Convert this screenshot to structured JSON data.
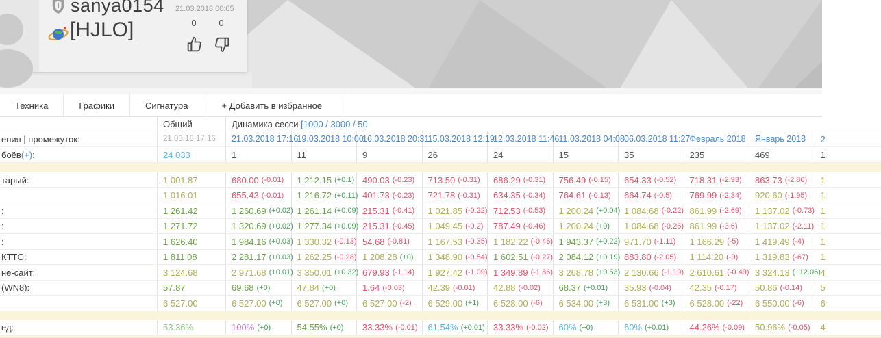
{
  "profile": {
    "name": "sanya0154",
    "clan": "[HJLO]",
    "date": "21.03.2018 00:05",
    "likes": "0",
    "dislikes": "0"
  },
  "tabs": [
    {
      "label": "Техника"
    },
    {
      "label": "Графики"
    },
    {
      "label": "Сигнатура"
    },
    {
      "label": "+ Добавить в избранное"
    }
  ],
  "table": {
    "header": {
      "overall": "Общий",
      "dynamics": "Динамика сесси",
      "dynamics_links": "[1000 / 3000 / 50"
    },
    "date_row": {
      "label": "ения | промежуток:",
      "overall": "21.03.18 17:16",
      "sessions": [
        "21.03.2018 17:16",
        "19.03.2018 10:00",
        "16.03.2018 20:31",
        "15.03.2018 12:19",
        "12.03.2018 11:46",
        "11.03.2018 04:08",
        "06.03.2018 11:27",
        "Февраль 2018",
        "Январь 2018"
      ],
      "partial": "2"
    },
    "battles_row": {
      "label_pre": "боёв ",
      "label_link": "(+)",
      "label_post": ":",
      "overall": "24 033",
      "sessions": [
        "1",
        "11",
        "9",
        "26",
        "24",
        "15",
        "35",
        "235",
        "469"
      ],
      "partial": "1"
    },
    "stat_rows": [
      {
        "label": "тарый:",
        "overall": [
          "1 001.87",
          "olive"
        ],
        "partial": [
          "1",
          "olive"
        ],
        "cells": [
          [
            "680.00",
            "red",
            "(-0.01)",
            "red"
          ],
          [
            "1 212.15",
            "green",
            "(+0.1)",
            "dgreen"
          ],
          [
            "490.03",
            "red",
            "(-0.23)",
            "red"
          ],
          [
            "713.50",
            "red",
            "(-0.31)",
            "red"
          ],
          [
            "686.29",
            "red",
            "(-0.31)",
            "red"
          ],
          [
            "756.49",
            "red",
            "(-0.15)",
            "red"
          ],
          [
            "654.33",
            "red",
            "(-0.52)",
            "red"
          ],
          [
            "718.31",
            "red",
            "(-2.93)",
            "red"
          ],
          [
            "863.73",
            "red",
            "(-2.86)",
            "red"
          ]
        ]
      },
      {
        "label": "",
        "overall": [
          "1 016.01",
          "olive"
        ],
        "partial": [
          "1",
          "olive"
        ],
        "cells": [
          [
            "655.43",
            "red",
            "(-0.01)",
            "red"
          ],
          [
            "1 216.72",
            "green",
            "(+0.11)",
            "dgreen"
          ],
          [
            "401.73",
            "red",
            "(-0.23)",
            "red"
          ],
          [
            "721.78",
            "red",
            "(-0.31)",
            "red"
          ],
          [
            "634.35",
            "red",
            "(-0.34)",
            "red"
          ],
          [
            "764.61",
            "red",
            "(-0.13)",
            "red"
          ],
          [
            "664.74",
            "red",
            "(-0.5)",
            "red"
          ],
          [
            "769.99",
            "red",
            "(-2.34)",
            "red"
          ],
          [
            "920.60",
            "olive",
            "(-1.95)",
            "red"
          ]
        ]
      },
      {
        "label": ":",
        "overall": [
          "1 261.42",
          "green"
        ],
        "partial": [
          "1",
          "olive"
        ],
        "cells": [
          [
            "1 260.69",
            "green",
            "(+0.02)",
            "dgreen"
          ],
          [
            "1 261.14",
            "green",
            "(+0.09)",
            "dgreen"
          ],
          [
            "215.31",
            "red",
            "(-0.41)",
            "red"
          ],
          [
            "1 021.85",
            "olive",
            "(-0.22)",
            "red"
          ],
          [
            "712.53",
            "red",
            "(-0.53)",
            "red"
          ],
          [
            "1 200.24",
            "olive",
            "(+0.04)",
            "dgreen"
          ],
          [
            "1 084.68",
            "olive",
            "(-0.22)",
            "red"
          ],
          [
            "861.99",
            "olive",
            "(-2.69)",
            "red"
          ],
          [
            "1 137.02",
            "olive",
            "(-0.73)",
            "red"
          ]
        ]
      },
      {
        "label": ":",
        "overall": [
          "1 271.72",
          "green"
        ],
        "partial": [
          "1",
          "olive"
        ],
        "cells": [
          [
            "1 320.69",
            "green",
            "(+0.02)",
            "dgreen"
          ],
          [
            "1 277.34",
            "green",
            "(+0.09)",
            "dgreen"
          ],
          [
            "215.31",
            "red",
            "(-0.45)",
            "red"
          ],
          [
            "1 049.45",
            "olive",
            "(-0.2)",
            "red"
          ],
          [
            "787.49",
            "red",
            "(-0.46)",
            "red"
          ],
          [
            "1 200.24",
            "olive",
            "(+0)",
            "dgreen"
          ],
          [
            "1 084.68",
            "olive",
            "(-0.26)",
            "red"
          ],
          [
            "861.99",
            "olive",
            "(-3.6)",
            "red"
          ],
          [
            "1 137.02",
            "olive",
            "(-2.11)",
            "red"
          ]
        ]
      },
      {
        "label": ":",
        "overall": [
          "1 626.40",
          "green"
        ],
        "partial": [
          "1",
          "olive"
        ],
        "cells": [
          [
            "1 984.16",
            "green",
            "(+0.03)",
            "dgreen"
          ],
          [
            "1 330.32",
            "olive",
            "(-0.13)",
            "red"
          ],
          [
            "54.68",
            "red",
            "(-0.81)",
            "red"
          ],
          [
            "1 167.53",
            "olive",
            "(-0.35)",
            "red"
          ],
          [
            "1 182.22",
            "olive",
            "(-0.46)",
            "red"
          ],
          [
            "1 943.37",
            "green",
            "(+0.22)",
            "dgreen"
          ],
          [
            "971.70",
            "olive",
            "(-1.11)",
            "red"
          ],
          [
            "1 166.29",
            "olive",
            "(-5)",
            "red"
          ],
          [
            "1 419.49",
            "olive",
            "(-4)",
            "red"
          ]
        ]
      },
      {
        "label": "КТТС:",
        "overall": [
          "1 811.08",
          "green"
        ],
        "partial": [
          "1",
          "olive"
        ],
        "cells": [
          [
            "2 281.17",
            "green",
            "(+0.03)",
            "dgreen"
          ],
          [
            "1 262.25",
            "olive",
            "(-0.28)",
            "red"
          ],
          [
            "1 208.28",
            "olive",
            "(+0)",
            "dgreen"
          ],
          [
            "1 348.90",
            "olive",
            "(-0.54)",
            "red"
          ],
          [
            "1 602.51",
            "green",
            "(-0.27)",
            "red"
          ],
          [
            "2 084.12",
            "green",
            "(+0.19)",
            "dgreen"
          ],
          [
            "883.80",
            "red",
            "(-2.05)",
            "red"
          ],
          [
            "1 114.20",
            "olive",
            "(-9)",
            "red"
          ],
          [
            "1 319.83",
            "olive",
            "(-67)",
            "red"
          ]
        ]
      },
      {
        "label": "не-сайт:",
        "overall": [
          "3 124.68",
          "olive"
        ],
        "partial": [
          "4",
          "olive"
        ],
        "cells": [
          [
            "2 971.68",
            "olive",
            "(+0.01)",
            "dgreen"
          ],
          [
            "3 350.01",
            "olive",
            "(+0.32)",
            "dgreen"
          ],
          [
            "679.93",
            "red",
            "(-1.14)",
            "red"
          ],
          [
            "1 927.42",
            "olive",
            "(-1.09)",
            "red"
          ],
          [
            "1 349.89",
            "red",
            "(-1.86)",
            "red"
          ],
          [
            "3 268.78",
            "olive",
            "(+0.53)",
            "dgreen"
          ],
          [
            "2 130.66",
            "olive",
            "(-1.19)",
            "red"
          ],
          [
            "2 610.61",
            "olive",
            "(-0.49)",
            "red"
          ],
          [
            "3 324.13",
            "olive",
            "(+12.06)",
            "dgreen"
          ]
        ]
      },
      {
        "label": " (WN8):",
        "overall": [
          "57.87",
          "green"
        ],
        "partial": [
          "5",
          "olive"
        ],
        "cells": [
          [
            "69.68",
            "green",
            "(+0)",
            "dgreen"
          ],
          [
            "47.84",
            "olive",
            "(+0)",
            "dgreen"
          ],
          [
            "1.64",
            "red",
            "(-0.03)",
            "red"
          ],
          [
            "42.39",
            "olive",
            "(-0.01)",
            "red"
          ],
          [
            "42.88",
            "olive",
            "(-0.02)",
            "red"
          ],
          [
            "68.37",
            "green",
            "(+0.01)",
            "dgreen"
          ],
          [
            "35.93",
            "olive",
            "(-0.04)",
            "red"
          ],
          [
            "42.35",
            "olive",
            "(-0.17)",
            "red"
          ],
          [
            "50.86",
            "olive",
            "(-0.14)",
            "red"
          ]
        ]
      },
      {
        "label": "",
        "overall": [
          "6 527.00",
          "olive"
        ],
        "partial": [
          "6",
          "olive"
        ],
        "cells": [
          [
            "6 527.00",
            "olive",
            "(+0)",
            "dgreen"
          ],
          [
            "6 527.00",
            "olive",
            "(+0)",
            "dgreen"
          ],
          [
            "6 527.00",
            "olive",
            "(-2)",
            "red"
          ],
          [
            "6 529.00",
            "olive",
            "(+1)",
            "dgreen"
          ],
          [
            "6 528.00",
            "olive",
            "(-6)",
            "red"
          ],
          [
            "6 534.00",
            "olive",
            "(+3)",
            "dgreen"
          ],
          [
            "6 531.00",
            "olive",
            "(+3)",
            "dgreen"
          ],
          [
            "6 528.00",
            "olive",
            "(-22)",
            "red"
          ],
          [
            "6 550.00",
            "olive",
            "(-6)",
            "red"
          ]
        ]
      }
    ],
    "win_row": {
      "label": "ед:",
      "overall": [
        "53.36%",
        "lgreen"
      ],
      "partial": [
        "4",
        "olive"
      ],
      "cells": [
        [
          "100%",
          "purple",
          "(+0)",
          "dgreen"
        ],
        [
          "54.55%",
          "green",
          "(+0)",
          "dgreen"
        ],
        [
          "33.33%",
          "red",
          "(-0.01)",
          "red"
        ],
        [
          "61.54%",
          "cyan",
          "(+0.01)",
          "dgreen"
        ],
        [
          "33.33%",
          "red",
          "(-0.02)",
          "red"
        ],
        [
          "60%",
          "cyan",
          "(+0)",
          "dgreen"
        ],
        [
          "60%",
          "cyan",
          "(+0.01)",
          "dgreen"
        ],
        [
          "44.26%",
          "red",
          "(-0.09)",
          "red"
        ],
        [
          "50.96%",
          "olive",
          "(-0.05)",
          "red"
        ]
      ]
    }
  },
  "colors": {
    "olive": "#b0ae4f",
    "red": "#e7506a",
    "green": "#6ba143",
    "dgreen": "#47a05c",
    "lgreen": "#8cc785",
    "cyan": "#57b6e7",
    "purple": "#c67ee3",
    "blue": "#4688ca",
    "gray_date": "#b3b3b3",
    "battles": "#4c4c4c",
    "label": "#3b3b3b",
    "beige": "#faf4da"
  }
}
